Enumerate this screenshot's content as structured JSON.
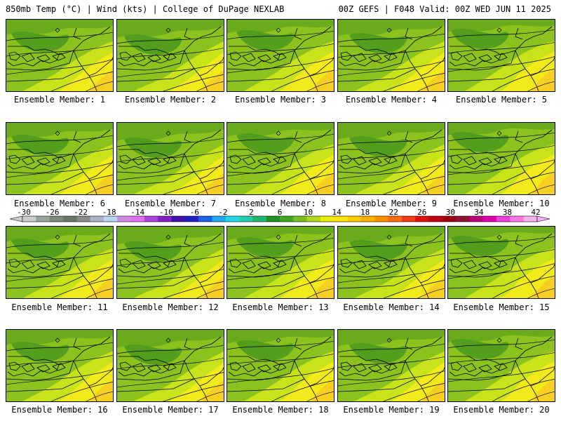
{
  "header": {
    "left": "850mb Temp (°C) | Wind (kts) | College of DuPage NEXLAB",
    "right": "00Z GEFS | F048 Valid: 00Z WED JUN 11 2025"
  },
  "panels": [
    {
      "label": "Ensemble Member: 1"
    },
    {
      "label": "Ensemble Member: 2"
    },
    {
      "label": "Ensemble Member: 3"
    },
    {
      "label": "Ensemble Member: 4"
    },
    {
      "label": "Ensemble Member: 5"
    },
    {
      "label": "Ensemble Member: 6"
    },
    {
      "label": "Ensemble Member: 7"
    },
    {
      "label": "Ensemble Member: 8"
    },
    {
      "label": "Ensemble Member: 9"
    },
    {
      "label": "Ensemble Member: 10"
    },
    {
      "label": "Ensemble Member: 11"
    },
    {
      "label": "Ensemble Member: 12"
    },
    {
      "label": "Ensemble Member: 13"
    },
    {
      "label": "Ensemble Member: 14"
    },
    {
      "label": "Ensemble Member: 15"
    },
    {
      "label": "Ensemble Member: 16"
    },
    {
      "label": "Ensemble Member: 17"
    },
    {
      "label": "Ensemble Member: 18"
    },
    {
      "label": "Ensemble Member: 19"
    },
    {
      "label": "Ensemble Member: 20"
    }
  ],
  "colorbar": {
    "labels": [
      "-30",
      "-26",
      "-22",
      "-18",
      "-14",
      "-10",
      "-6",
      "-2",
      "2",
      "6",
      "10",
      "14",
      "18",
      "22",
      "26",
      "30",
      "34",
      "38",
      "42"
    ],
    "colors": [
      "#cccccc",
      "#9aa39a",
      "#7d8a7d",
      "#6a766a",
      "#8a8a8a",
      "#b0b4c8",
      "#b8d8f0",
      "#d08be8",
      "#e070f0",
      "#b040d8",
      "#8020c0",
      "#4010b0",
      "#2020c8",
      "#2060e8",
      "#20a8f0",
      "#20d8e8",
      "#20d0b0",
      "#20b870",
      "#209020",
      "#40a820",
      "#78c020",
      "#b0d820",
      "#e8f000",
      "#ffe800",
      "#ffcc00",
      "#ffb000",
      "#ff9000",
      "#ff6a10",
      "#f03818",
      "#e01010",
      "#c00010",
      "#a00010",
      "#901030",
      "#c00078",
      "#e000b0",
      "#f040d8",
      "#f878e8",
      "#f8b0f0"
    ]
  }
}
